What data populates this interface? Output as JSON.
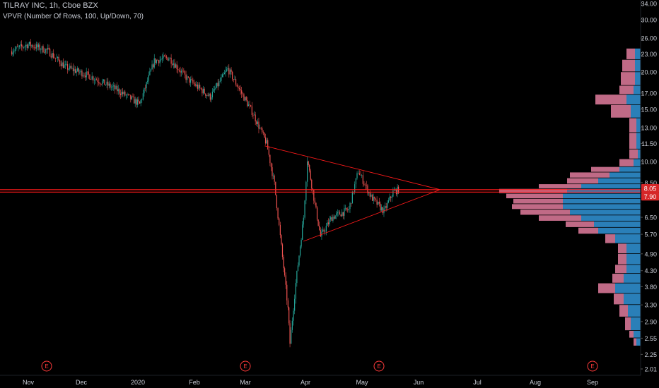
{
  "header": {
    "symbol_line": "TILRAY INC, 1h, Cboe BZX",
    "indicator_line": "VPVR (Number Of Rows, 100, Up/Down, 70)"
  },
  "colors": {
    "background": "#000000",
    "up_candle": "#26a69a",
    "down_candle": "#ef5350",
    "trendline": "#ff1a1a",
    "vp_up": "#2a7fb8",
    "vp_down": "#c06a86",
    "axis_text": "#c9cdd6",
    "earnings_marker": "#ff3b3b",
    "price_label_bg": "#d62728"
  },
  "chart_data": {
    "type": "candlestick",
    "title": "TILRAY INC, 1h, Cboe BZX",
    "x_month_labels": [
      "Nov",
      "Dec",
      "2020",
      "Feb",
      "Mar",
      "Apr",
      "May",
      "Jun",
      "Jul",
      "Aug",
      "Sep"
    ],
    "y_scale": "log",
    "y_tick_labels": [
      "34.00",
      "30.00",
      "26.00",
      "23.00",
      "20.00",
      "17.00",
      "15.00",
      "13.00",
      "11.50",
      "10.00",
      "8.50",
      "6.50",
      "5.70",
      "4.90",
      "4.30",
      "3.80",
      "3.30",
      "2.90",
      "2.55",
      "2.25",
      "2.01"
    ],
    "ylim": [
      2.01,
      34.0
    ],
    "price_labels": [
      "8.05",
      "7.90"
    ],
    "horizontal_lines": [
      8.05,
      7.9
    ],
    "earnings_markers": [
      "Nov",
      "Mar",
      "May",
      "Sep"
    ],
    "earnings_marker_label": "E",
    "price_path_approx": [
      {
        "date": "2019-10-22",
        "close": 23.5
      },
      {
        "date": "2019-11-01",
        "close": 24.8
      },
      {
        "date": "2019-11-12",
        "close": 23.6
      },
      {
        "date": "2019-11-22",
        "close": 20.8
      },
      {
        "date": "2019-12-05",
        "close": 19.5
      },
      {
        "date": "2019-12-20",
        "close": 17.5
      },
      {
        "date": "2020-01-02",
        "close": 15.6
      },
      {
        "date": "2020-01-10",
        "close": 21.8
      },
      {
        "date": "2020-01-18",
        "close": 22.4
      },
      {
        "date": "2020-01-28",
        "close": 19.0
      },
      {
        "date": "2020-02-10",
        "close": 16.5
      },
      {
        "date": "2020-02-20",
        "close": 20.5
      },
      {
        "date": "2020-03-05",
        "close": 14.5
      },
      {
        "date": "2020-03-12",
        "close": 11.5
      },
      {
        "date": "2020-03-16",
        "close": 8.4
      },
      {
        "date": "2020-03-19",
        "close": 5.6
      },
      {
        "date": "2020-03-23",
        "close": 3.2
      },
      {
        "date": "2020-03-24",
        "close": 2.45
      },
      {
        "date": "2020-03-27",
        "close": 3.9
      },
      {
        "date": "2020-03-31",
        "close": 6.5
      },
      {
        "date": "2020-04-02",
        "close": 10.2
      },
      {
        "date": "2020-04-06",
        "close": 7.2
      },
      {
        "date": "2020-04-09",
        "close": 5.6
      },
      {
        "date": "2020-04-15",
        "close": 6.5
      },
      {
        "date": "2020-04-24",
        "close": 6.9
      },
      {
        "date": "2020-04-29",
        "close": 9.3
      },
      {
        "date": "2020-05-06",
        "close": 7.6
      },
      {
        "date": "2020-05-13",
        "close": 6.8
      },
      {
        "date": "2020-05-18",
        "close": 7.9
      },
      {
        "date": "2020-05-21",
        "close": 8.05
      }
    ],
    "triangle_lines": [
      {
        "from": {
          "date": "2020-03-11",
          "price": 11.3
        },
        "to": {
          "date": "2020-06-12",
          "price": 8.05
        }
      },
      {
        "from": {
          "date": "2020-03-31",
          "price": 5.4
        },
        "to": {
          "date": "2020-06-12",
          "price": 8.05
        }
      }
    ],
    "volume_profile": {
      "rows": 100,
      "mode": "Up/Down",
      "value_area": 70,
      "bins_approx": [
        {
          "price": 24.0,
          "up": 0.04,
          "down": 0.06
        },
        {
          "price": 22.0,
          "up": 0.04,
          "down": 0.09
        },
        {
          "price": 20.0,
          "up": 0.04,
          "down": 0.1
        },
        {
          "price": 18.0,
          "up": 0.05,
          "down": 0.1
        },
        {
          "price": 16.8,
          "up": 0.1,
          "down": 0.22
        },
        {
          "price": 15.5,
          "up": 0.07,
          "down": 0.14
        },
        {
          "price": 14.0,
          "up": 0.03,
          "down": 0.05
        },
        {
          "price": 12.5,
          "up": 0.03,
          "down": 0.05
        },
        {
          "price": 11.0,
          "up": 0.02,
          "down": 0.06
        },
        {
          "price": 10.2,
          "up": 0.05,
          "down": 0.1
        },
        {
          "price": 9.6,
          "up": 0.15,
          "down": 0.2
        },
        {
          "price": 9.2,
          "up": 0.22,
          "down": 0.28
        },
        {
          "price": 8.8,
          "up": 0.3,
          "down": 0.22
        },
        {
          "price": 8.4,
          "up": 0.42,
          "down": 0.3
        },
        {
          "price": 8.1,
          "up": 0.52,
          "down": 0.48
        },
        {
          "price": 7.8,
          "up": 0.55,
          "down": 0.4
        },
        {
          "price": 7.5,
          "up": 0.55,
          "down": 0.35
        },
        {
          "price": 7.2,
          "up": 0.55,
          "down": 0.36
        },
        {
          "price": 6.9,
          "up": 0.5,
          "down": 0.35
        },
        {
          "price": 6.6,
          "up": 0.42,
          "down": 0.3
        },
        {
          "price": 6.3,
          "up": 0.33,
          "down": 0.2
        },
        {
          "price": 6.0,
          "up": 0.3,
          "down": 0.14
        },
        {
          "price": 5.7,
          "up": 0.18,
          "down": 0.07
        },
        {
          "price": 5.3,
          "up": 0.1,
          "down": 0.06
        },
        {
          "price": 4.9,
          "up": 0.1,
          "down": 0.06
        },
        {
          "price": 4.5,
          "up": 0.1,
          "down": 0.08
        },
        {
          "price": 4.2,
          "up": 0.12,
          "down": 0.08
        },
        {
          "price": 3.9,
          "up": 0.18,
          "down": 0.12
        },
        {
          "price": 3.6,
          "up": 0.12,
          "down": 0.07
        },
        {
          "price": 3.3,
          "up": 0.09,
          "down": 0.06
        },
        {
          "price": 3.0,
          "up": 0.07,
          "down": 0.04
        },
        {
          "price": 2.7,
          "up": 0.05,
          "down": 0.03
        },
        {
          "price": 2.55,
          "up": 0.03,
          "down": 0.02
        }
      ]
    }
  }
}
